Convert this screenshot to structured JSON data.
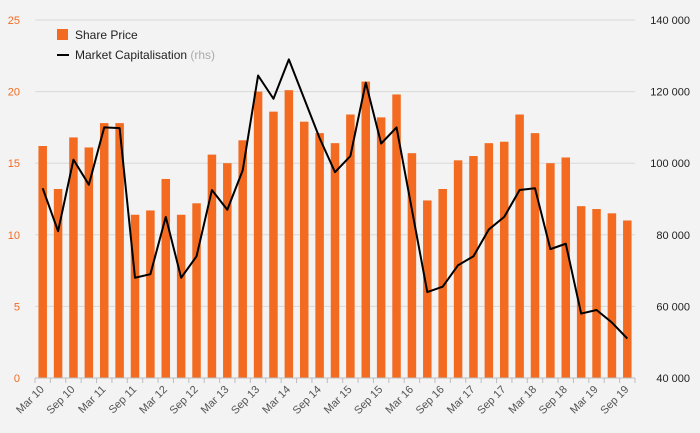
{
  "chart_data": {
    "type": "bar",
    "categories": [
      "Mar 10",
      "Jun 10",
      "Sep 10",
      "Dec 10",
      "Mar 11",
      "Jun 11",
      "Sep 11",
      "Dec 11",
      "Mar 12",
      "Jun 12",
      "Sep 12",
      "Dec 12",
      "Mar 13",
      "Jun 13",
      "Sep 13",
      "Dec 13",
      "Mar 14",
      "Jun 14",
      "Sep 14",
      "Dec 14",
      "Mar 15",
      "Jun 15",
      "Sep 15",
      "Dec 15",
      "Mar 16",
      "Jun 16",
      "Sep 16",
      "Dec 16",
      "Mar 17",
      "Jun 17",
      "Sep 17",
      "Dec 17",
      "Mar 18",
      "Jun 18",
      "Sep 18",
      "Dec 18",
      "Mar 19",
      "Jun 19",
      "Sep 19"
    ],
    "x_tick_labels": [
      "Mar 10",
      "Sep 10",
      "Mar 11",
      "Sep 11",
      "Mar 12",
      "Sep 12",
      "Mar 13",
      "Sep 13",
      "Mar 14",
      "Sep 14",
      "Mar 15",
      "Sep 15",
      "Mar 16",
      "Sep 16",
      "Mar 17",
      "Sep 17",
      "Mar 18",
      "Sep 18",
      "Mar 19",
      "Sep 19"
    ],
    "series": [
      {
        "name": "Share Price",
        "kind": "bar",
        "axis": "left",
        "color": "#f26b21",
        "values": [
          16.2,
          13.2,
          16.8,
          16.1,
          17.8,
          17.8,
          11.4,
          11.7,
          13.9,
          11.4,
          12.2,
          15.6,
          15.0,
          16.6,
          20.0,
          18.6,
          20.1,
          17.9,
          17.1,
          16.4,
          18.4,
          20.7,
          18.2,
          19.8,
          15.7,
          12.4,
          13.2,
          15.2,
          15.5,
          16.4,
          16.5,
          18.4,
          17.1,
          15.0,
          15.4,
          12.0,
          11.8,
          11.5,
          11.0
        ]
      },
      {
        "name": "Market Capitalisation",
        "name_suffix": "(rhs)",
        "kind": "line",
        "axis": "right",
        "color": "#000000",
        "values": [
          93000,
          81000,
          101000,
          94000,
          110000,
          109800,
          68000,
          69000,
          85000,
          68000,
          74000,
          92500,
          87000,
          98000,
          124500,
          118000,
          129000,
          118000,
          107000,
          97500,
          102000,
          122500,
          105500,
          110000,
          87000,
          64000,
          65500,
          71500,
          74000,
          81500,
          85000,
          92500,
          93000,
          76000,
          77500,
          58000,
          59000,
          55500,
          51000
        ]
      }
    ],
    "left_axis": {
      "ylim": [
        0,
        25
      ],
      "ticks": [
        0,
        5,
        10,
        15,
        20,
        25
      ],
      "tick_color": "#f26b21"
    },
    "right_axis": {
      "ylim": [
        40000,
        140000
      ],
      "ticks": [
        "40 000",
        "60 000",
        "80 000",
        "100 000",
        "120 000",
        "140 000"
      ],
      "tick_values": [
        40000,
        60000,
        80000,
        100000,
        120000,
        140000
      ]
    },
    "grid": true,
    "legend_position": "top-left"
  }
}
